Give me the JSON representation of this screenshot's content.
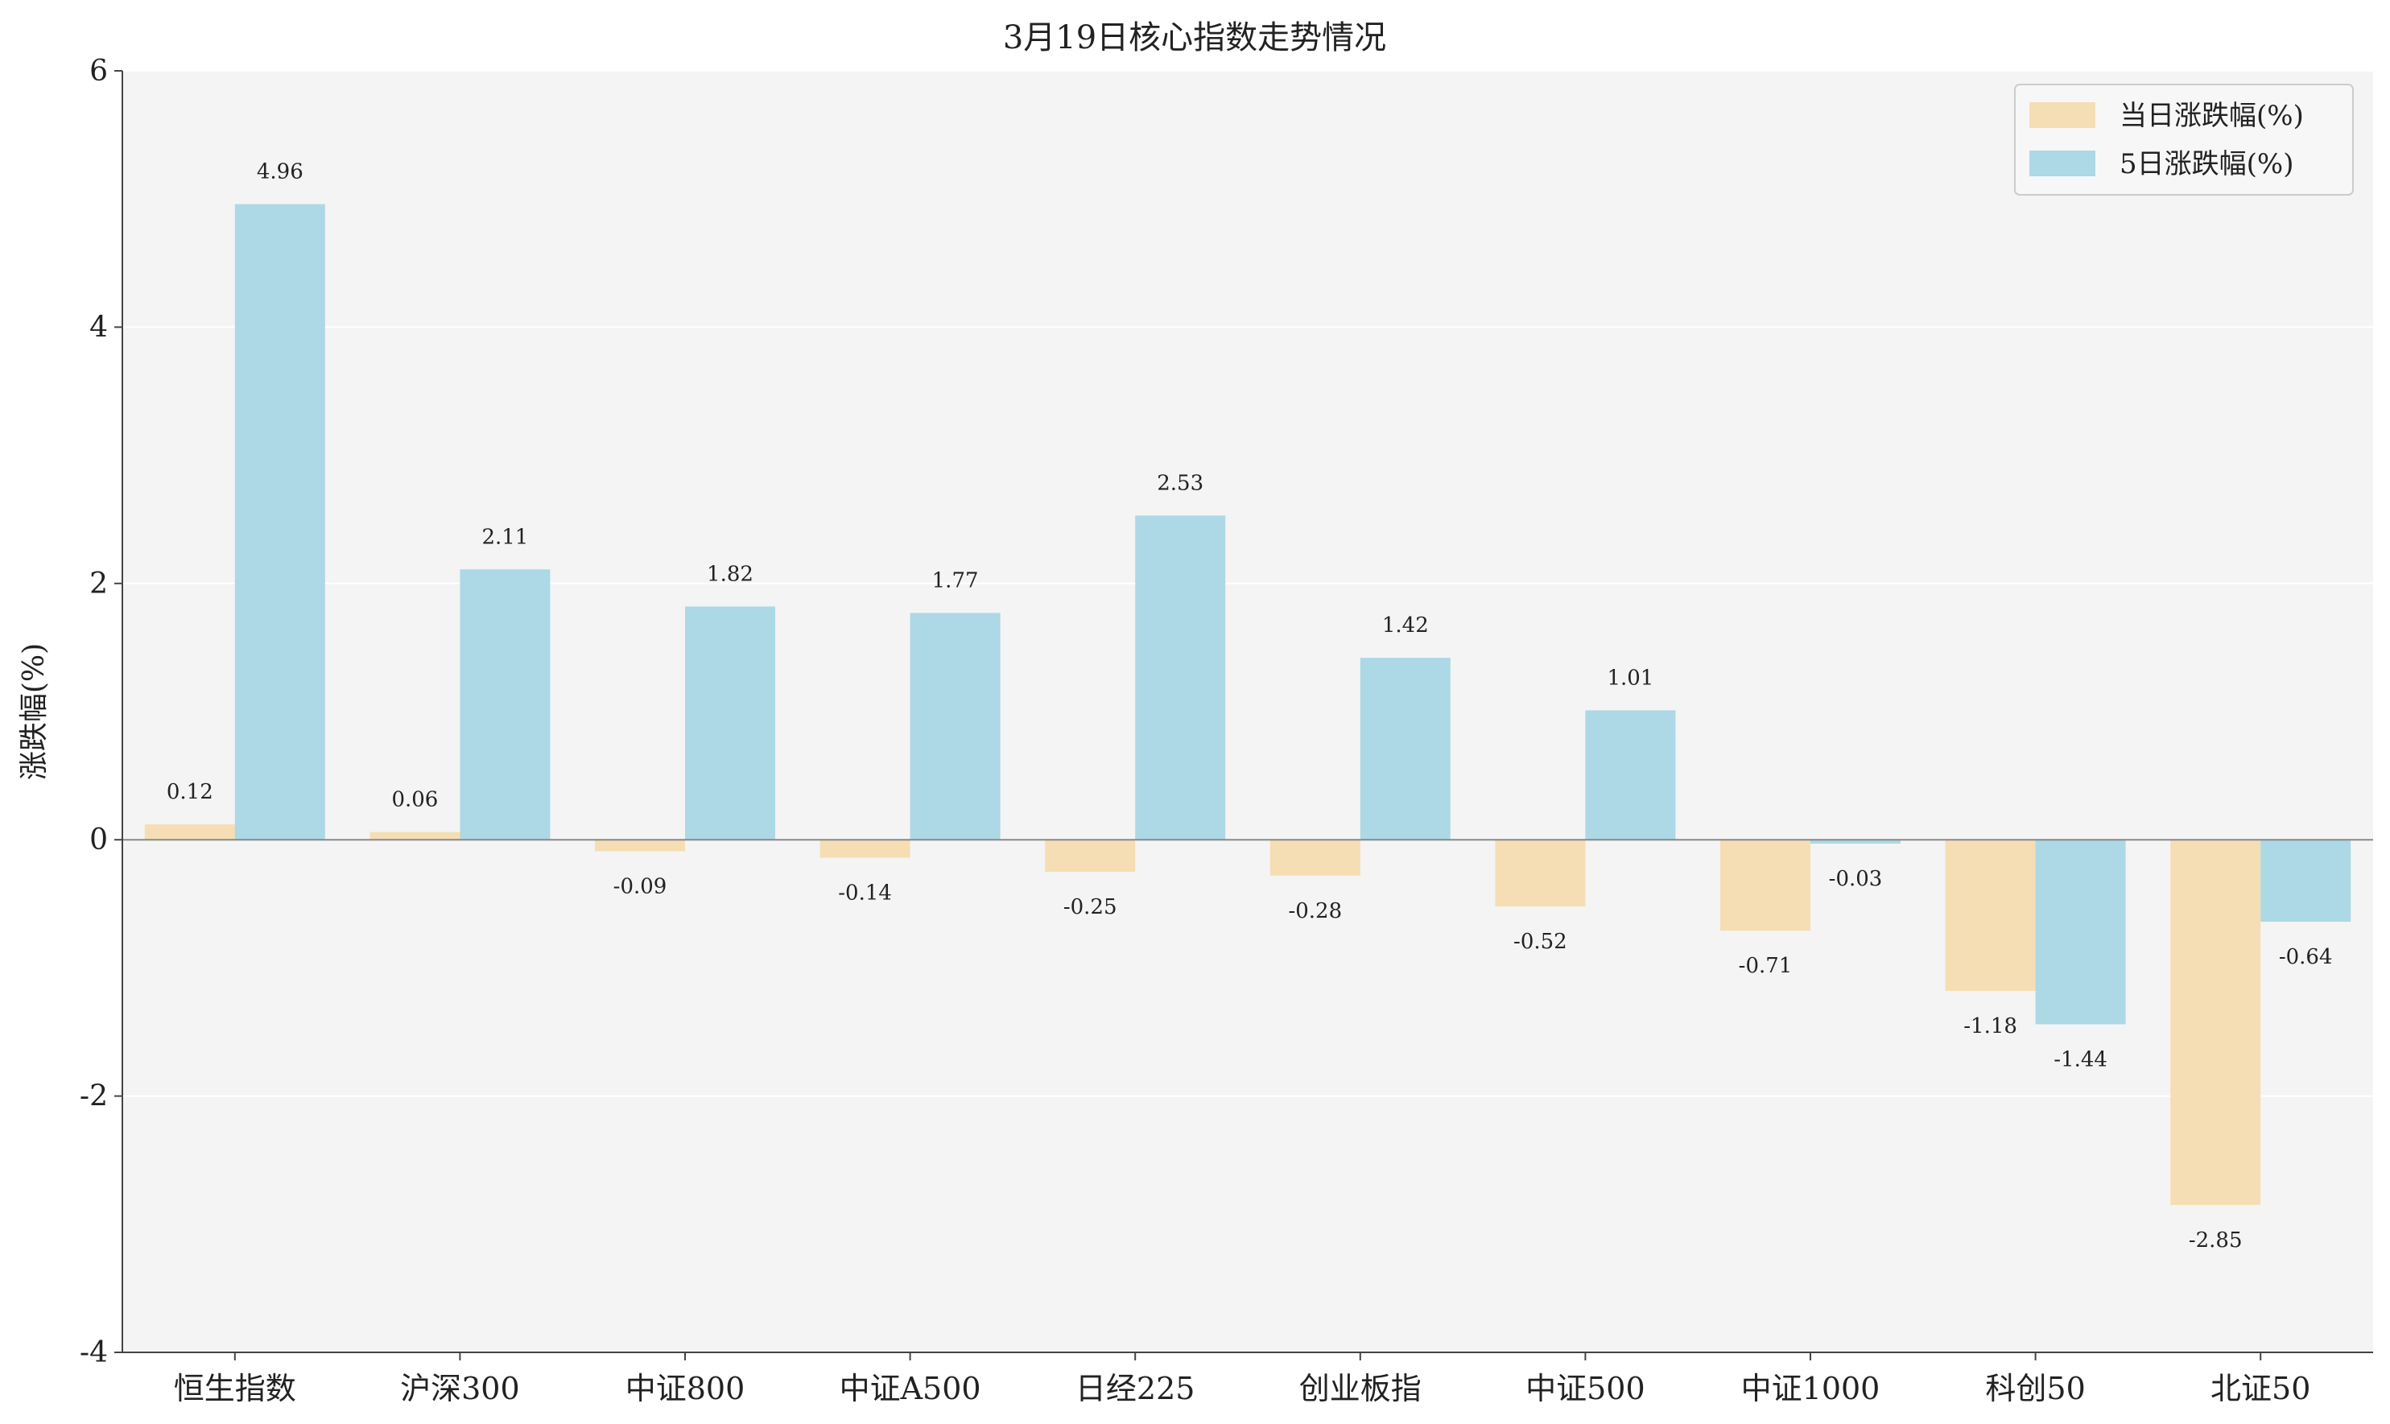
{
  "chart_data": {
    "type": "bar",
    "title": "3月19日核心指数走势情况",
    "xlabel": "",
    "ylabel": "涨跌幅(%)",
    "ylim": [
      -4,
      6
    ],
    "yticks": [
      -4,
      -2,
      0,
      2,
      4,
      6
    ],
    "grid": true,
    "legend_position": "top-right",
    "categories": [
      "恒生指数",
      "沪深300",
      "中证800",
      "中证A500",
      "日经225",
      "创业板指",
      "中证500",
      "中证1000",
      "科创50",
      "北证50"
    ],
    "series": [
      {
        "name": "当日涨跌幅(%)",
        "color": "#f5deb3",
        "values": [
          0.12,
          0.06,
          -0.09,
          -0.14,
          -0.25,
          -0.28,
          -0.52,
          -0.71,
          -1.18,
          -2.85
        ]
      },
      {
        "name": "5日涨跌幅(%)",
        "color": "#add8e6",
        "values": [
          4.96,
          2.11,
          1.82,
          1.77,
          2.53,
          1.42,
          1.01,
          -0.03,
          -1.44,
          -0.64
        ]
      }
    ]
  }
}
